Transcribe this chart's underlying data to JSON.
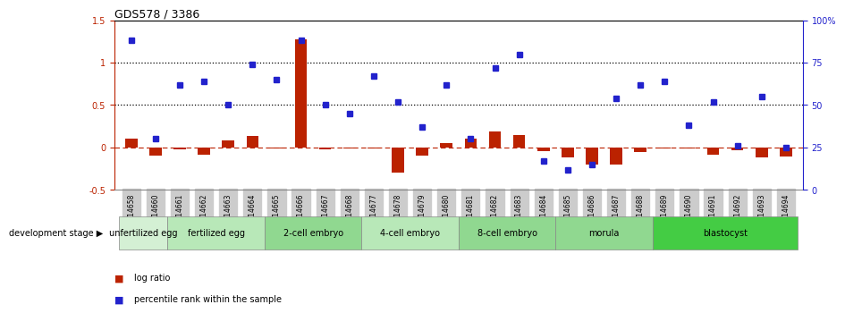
{
  "title": "GDS578 / 3386",
  "samples": [
    "GSM14658",
    "GSM14660",
    "GSM14661",
    "GSM14662",
    "GSM14663",
    "GSM14664",
    "GSM14665",
    "GSM14666",
    "GSM14667",
    "GSM14668",
    "GSM14677",
    "GSM14678",
    "GSM14679",
    "GSM14680",
    "GSM14681",
    "GSM14682",
    "GSM14683",
    "GSM14684",
    "GSM14685",
    "GSM14686",
    "GSM14687",
    "GSM14688",
    "GSM14689",
    "GSM14690",
    "GSM14691",
    "GSM14692",
    "GSM14693",
    "GSM14694"
  ],
  "log_ratio": [
    0.1,
    -0.1,
    -0.02,
    -0.08,
    0.08,
    0.14,
    -0.01,
    1.27,
    -0.02,
    -0.01,
    -0.01,
    -0.3,
    -0.1,
    0.05,
    0.1,
    0.19,
    0.15,
    -0.04,
    -0.12,
    -0.2,
    -0.2,
    -0.05,
    -0.01,
    -0.01,
    -0.08,
    -0.03,
    -0.12,
    -0.11
  ],
  "percentile_rank": [
    88,
    30,
    62,
    64,
    50,
    74,
    65,
    88,
    50,
    45,
    67,
    52,
    37,
    62,
    30,
    72,
    80,
    17,
    12,
    15,
    54,
    62,
    64,
    38,
    52,
    26,
    55,
    25
  ],
  "stages": [
    {
      "label": "unfertilized egg",
      "start": 0,
      "end": 2,
      "color": "#d4f0d4"
    },
    {
      "label": "fertilized egg",
      "start": 2,
      "end": 6,
      "color": "#b8e8b8"
    },
    {
      "label": "2-cell embryo",
      "start": 6,
      "end": 10,
      "color": "#90d890"
    },
    {
      "label": "4-cell embryo",
      "start": 10,
      "end": 14,
      "color": "#b8e8b8"
    },
    {
      "label": "8-cell embryo",
      "start": 14,
      "end": 18,
      "color": "#90d890"
    },
    {
      "label": "morula",
      "start": 18,
      "end": 22,
      "color": "#90d890"
    },
    {
      "label": "blastocyst",
      "start": 22,
      "end": 28,
      "color": "#44cc44"
    }
  ],
  "ylim_left": [
    -0.5,
    1.5
  ],
  "ylim_right": [
    0,
    100
  ],
  "bar_color": "#bb2200",
  "point_color": "#2222cc",
  "dotted_line_color": "#000000",
  "zero_line_color": "#bb2200",
  "legend_bar_label": "log ratio",
  "legend_point_label": "percentile rank within the sample",
  "stage_label": "development stage",
  "background_color": "#ffffff",
  "tick_bg_color": "#cccccc"
}
